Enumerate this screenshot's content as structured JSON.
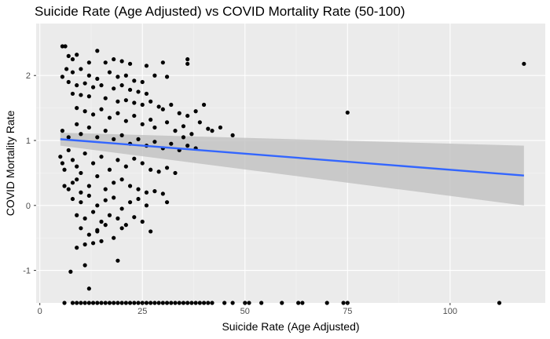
{
  "chart_data": {
    "type": "scatter",
    "title": "Suicide Rate (Age Adjusted) vs COVID Mortality Rate (50-100)",
    "xlabel": "Suicide Rate (Age Adjusted)",
    "ylabel": "COVID Mortality Rate",
    "xlim": [
      -0.9,
      123.2
    ],
    "ylim": [
      -1.5,
      2.8
    ],
    "x_ticks": [
      0,
      25,
      50,
      75,
      100
    ],
    "y_ticks": [
      -1,
      0,
      1,
      2
    ],
    "grid": true,
    "legend": "none",
    "colors": {
      "panel": "#ebebeb",
      "grid_major": "#ffffff",
      "points": "#000000",
      "trend_line": "#3366ff",
      "confidence_band": "#bdbdbd"
    },
    "trend_line": {
      "x": [
        5,
        118
      ],
      "y": [
        1.02,
        0.46
      ],
      "band_upper": [
        1.12,
        0.92
      ],
      "band_lower": [
        0.92,
        0.0
      ]
    },
    "series": [
      {
        "points": [
          [
            5.5,
            2.45
          ],
          [
            6.2,
            2.45
          ],
          [
            7,
            2.3
          ],
          [
            8,
            2.25
          ],
          [
            9,
            2.32
          ],
          [
            12,
            2.2
          ],
          [
            14,
            2.38
          ],
          [
            16,
            2.2
          ],
          [
            18,
            2.25
          ],
          [
            20,
            2.22
          ],
          [
            22,
            2.18
          ],
          [
            26,
            2.15
          ],
          [
            30,
            2.2
          ],
          [
            36,
            2.25
          ],
          [
            36,
            2.18
          ],
          [
            5.5,
            1.98
          ],
          [
            6.5,
            2.1
          ],
          [
            8,
            2.05
          ],
          [
            10,
            2.1
          ],
          [
            12,
            2.0
          ],
          [
            14,
            1.95
          ],
          [
            17,
            2.05
          ],
          [
            19,
            1.98
          ],
          [
            21,
            2.0
          ],
          [
            23,
            1.92
          ],
          [
            25,
            1.9
          ],
          [
            28,
            2.0
          ],
          [
            31,
            1.98
          ],
          [
            7,
            1.9
          ],
          [
            9,
            1.85
          ],
          [
            11,
            1.88
          ],
          [
            13,
            1.82
          ],
          [
            15,
            1.85
          ],
          [
            18,
            1.8
          ],
          [
            20,
            1.85
          ],
          [
            22,
            1.78
          ],
          [
            24,
            1.75
          ],
          [
            26,
            1.72
          ],
          [
            8,
            1.72
          ],
          [
            10,
            1.7
          ],
          [
            12,
            1.68
          ],
          [
            16,
            1.65
          ],
          [
            19,
            1.6
          ],
          [
            21,
            1.62
          ],
          [
            23,
            1.58
          ],
          [
            25,
            1.55
          ],
          [
            27,
            1.6
          ],
          [
            29,
            1.52
          ],
          [
            30,
            1.48
          ],
          [
            32,
            1.55
          ],
          [
            34,
            1.42
          ],
          [
            36,
            1.38
          ],
          [
            38,
            1.45
          ],
          [
            40,
            1.55
          ],
          [
            9,
            1.5
          ],
          [
            11,
            1.45
          ],
          [
            13,
            1.4
          ],
          [
            15,
            1.48
          ],
          [
            17,
            1.35
          ],
          [
            19,
            1.42
          ],
          [
            21,
            1.3
          ],
          [
            23,
            1.38
          ],
          [
            25,
            1.25
          ],
          [
            27,
            1.32
          ],
          [
            28,
            1.2
          ],
          [
            31,
            1.28
          ],
          [
            33,
            1.15
          ],
          [
            35,
            1.22
          ],
          [
            37,
            1.1
          ],
          [
            39,
            1.28
          ],
          [
            41,
            1.18
          ],
          [
            42,
            1.15
          ],
          [
            44,
            1.2
          ],
          [
            47,
            1.08
          ],
          [
            5.5,
            1.15
          ],
          [
            7,
            1.05
          ],
          [
            9,
            1.25
          ],
          [
            10,
            1.1
          ],
          [
            12,
            1.2
          ],
          [
            14,
            1.05
          ],
          [
            16,
            1.15
          ],
          [
            18,
            1.02
          ],
          [
            20,
            1.08
          ],
          [
            22,
            0.95
          ],
          [
            24,
            1.02
          ],
          [
            26,
            0.92
          ],
          [
            28,
            0.98
          ],
          [
            30,
            0.88
          ],
          [
            32,
            0.95
          ],
          [
            34,
            0.85
          ],
          [
            36,
            0.92
          ],
          [
            38,
            0.88
          ],
          [
            35,
            1.05
          ],
          [
            5,
            0.75
          ],
          [
            5.5,
            0.65
          ],
          [
            6,
            0.55
          ],
          [
            7,
            0.85
          ],
          [
            8,
            0.7
          ],
          [
            9,
            0.6
          ],
          [
            10,
            0.5
          ],
          [
            11,
            0.8
          ],
          [
            13,
            0.65
          ],
          [
            15,
            0.75
          ],
          [
            17,
            0.55
          ],
          [
            19,
            0.7
          ],
          [
            21,
            0.6
          ],
          [
            23,
            0.72
          ],
          [
            25,
            0.65
          ],
          [
            27,
            0.55
          ],
          [
            29,
            0.52
          ],
          [
            31,
            0.58
          ],
          [
            33,
            0.5
          ],
          [
            6,
            0.3
          ],
          [
            7,
            0.25
          ],
          [
            8,
            0.35
          ],
          [
            9,
            0.4
          ],
          [
            10,
            0.2
          ],
          [
            12,
            0.3
          ],
          [
            14,
            0.45
          ],
          [
            16,
            0.25
          ],
          [
            18,
            0.35
          ],
          [
            20,
            0.4
          ],
          [
            22,
            0.3
          ],
          [
            24,
            0.25
          ],
          [
            26,
            0.2
          ],
          [
            28,
            0.22
          ],
          [
            30,
            0.18
          ],
          [
            31,
            0.05
          ],
          [
            8,
            0.1
          ],
          [
            10,
            0.05
          ],
          [
            12,
            0.15
          ],
          [
            14,
            0.0
          ],
          [
            16,
            0.08
          ],
          [
            18,
            0.12
          ],
          [
            20,
            -0.05
          ],
          [
            22,
            0.05
          ],
          [
            24,
            0.1
          ],
          [
            26,
            0.0
          ],
          [
            9,
            -0.15
          ],
          [
            11,
            -0.2
          ],
          [
            13,
            -0.1
          ],
          [
            15,
            -0.25
          ],
          [
            17,
            -0.15
          ],
          [
            19,
            -0.2
          ],
          [
            21,
            -0.3
          ],
          [
            23,
            -0.18
          ],
          [
            25,
            -0.25
          ],
          [
            27,
            -0.4
          ],
          [
            10,
            -0.35
          ],
          [
            12,
            -0.45
          ],
          [
            14,
            -0.4
          ],
          [
            16,
            -0.3
          ],
          [
            18,
            -0.5
          ],
          [
            20,
            -0.35
          ],
          [
            11,
            -0.6
          ],
          [
            13,
            -0.58
          ],
          [
            15,
            -0.55
          ],
          [
            14,
            -0.38
          ],
          [
            19,
            -0.85
          ],
          [
            9,
            -0.65
          ],
          [
            7.5,
            -1.02
          ],
          [
            11,
            -0.92
          ],
          [
            12,
            -1.28
          ],
          [
            75,
            1.43
          ],
          [
            118,
            2.18
          ],
          [
            6,
            -1.5
          ],
          [
            8,
            -1.5
          ],
          [
            9,
            -1.5
          ],
          [
            10,
            -1.5
          ],
          [
            11,
            -1.5
          ],
          [
            12,
            -1.5
          ],
          [
            13,
            -1.5
          ],
          [
            14,
            -1.5
          ],
          [
            15,
            -1.5
          ],
          [
            16,
            -1.5
          ],
          [
            17,
            -1.5
          ],
          [
            18,
            -1.5
          ],
          [
            19,
            -1.5
          ],
          [
            20,
            -1.5
          ],
          [
            21,
            -1.5
          ],
          [
            22,
            -1.5
          ],
          [
            23,
            -1.5
          ],
          [
            24,
            -1.5
          ],
          [
            25,
            -1.5
          ],
          [
            26,
            -1.5
          ],
          [
            27,
            -1.5
          ],
          [
            28,
            -1.5
          ],
          [
            29,
            -1.5
          ],
          [
            30,
            -1.5
          ],
          [
            31,
            -1.5
          ],
          [
            32,
            -1.5
          ],
          [
            33,
            -1.5
          ],
          [
            34,
            -1.5
          ],
          [
            35,
            -1.5
          ],
          [
            36,
            -1.5
          ],
          [
            37,
            -1.5
          ],
          [
            38,
            -1.5
          ],
          [
            39,
            -1.5
          ],
          [
            40,
            -1.5
          ],
          [
            41,
            -1.5
          ],
          [
            42,
            -1.5
          ],
          [
            45,
            -1.5
          ],
          [
            47,
            -1.5
          ],
          [
            50,
            -1.5
          ],
          [
            51,
            -1.5
          ],
          [
            54,
            -1.5
          ],
          [
            59,
            -1.5
          ],
          [
            63,
            -1.5
          ],
          [
            64,
            -1.5
          ],
          [
            70,
            -1.5
          ],
          [
            74,
            -1.5
          ],
          [
            75,
            -1.5
          ],
          [
            112,
            -1.5
          ]
        ]
      }
    ]
  }
}
